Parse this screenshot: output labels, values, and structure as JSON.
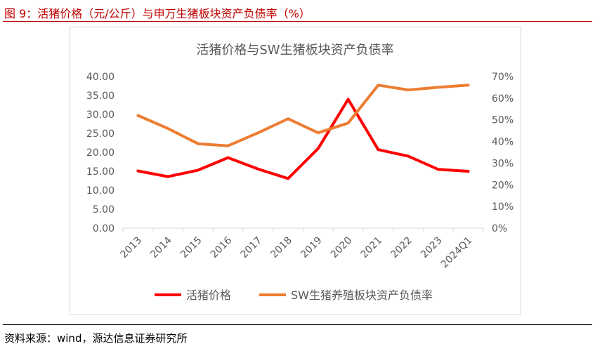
{
  "figure": {
    "title": "图 9：活猪价格（元/公斤）与申万生猪板块资产负债率（%）",
    "source": "资料来源：wind，源达信息证券研究所"
  },
  "colors": {
    "accent": "#c00000",
    "series_price": "#ff0000",
    "series_ratio": "#ed7d31"
  },
  "chart_data": {
    "type": "line",
    "title": "活猪价格与SW生猪板块资产负债率",
    "categories": [
      "2013",
      "2014",
      "2015",
      "2016",
      "2017",
      "2018",
      "2019",
      "2020",
      "2021",
      "2022",
      "2023",
      "2024Q1"
    ],
    "series": [
      {
        "name": "活猪价格",
        "axis": "left",
        "values": [
          15.1,
          13.6,
          15.3,
          18.6,
          15.6,
          13.1,
          21.0,
          34.0,
          20.7,
          19.0,
          15.5,
          15.0
        ]
      },
      {
        "name": "SW生猪养殖板块资产负债率",
        "axis": "right",
        "values": [
          52,
          46,
          39,
          38,
          44,
          50.5,
          44,
          48.5,
          66,
          63.8,
          65,
          66
        ]
      }
    ],
    "yticks_left": [
      "40.00",
      "35.00",
      "30.00",
      "25.00",
      "20.00",
      "15.00",
      "10.00",
      "5.00",
      "0.00"
    ],
    "yticks_right": [
      "70%",
      "60%",
      "50%",
      "40%",
      "30%",
      "20%",
      "10%",
      "0%"
    ],
    "ylim_left": [
      0,
      40
    ],
    "ylim_right": [
      0,
      70
    ],
    "grid": false,
    "legend": "bottom"
  }
}
